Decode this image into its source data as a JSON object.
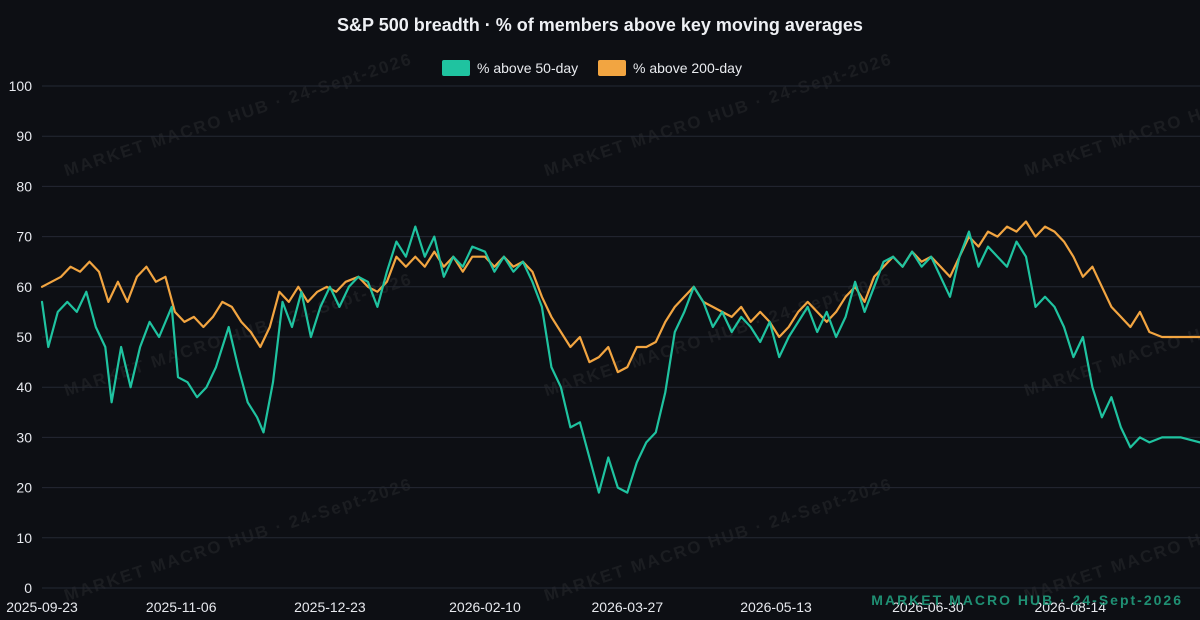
{
  "watermark": "MARKET MACRO HUB · 24-Sept-2026",
  "colors": {
    "background": "#0d0f14",
    "grid": "#242833",
    "series50": "#1fc3a0",
    "series200": "#f2a541"
  },
  "chart_data": {
    "type": "line",
    "title": "S&P 500 breadth · % of members above key moving averages",
    "xlabel": "",
    "ylabel": "",
    "ylim": [
      0,
      100
    ],
    "yticks": [
      0,
      10,
      20,
      30,
      40,
      50,
      60,
      70,
      80,
      90,
      100
    ],
    "xlim": [
      "2025-09-23",
      "2026-09-24"
    ],
    "xticks": [
      "2025-09-23",
      "2025-11-06",
      "2025-12-23",
      "2026-02-10",
      "2026-03-27",
      "2026-05-13",
      "2026-06-30",
      "2026-08-14"
    ],
    "grid": true,
    "legend_position": "top-center",
    "series": [
      {
        "name": "% above 50-day",
        "color": "#1fc3a0",
        "points": [
          [
            "2025-09-23",
            57
          ],
          [
            "2025-09-25",
            48
          ],
          [
            "2025-09-28",
            55
          ],
          [
            "2025-10-01",
            57
          ],
          [
            "2025-10-04",
            55
          ],
          [
            "2025-10-07",
            59
          ],
          [
            "2025-10-10",
            52
          ],
          [
            "2025-10-13",
            48
          ],
          [
            "2025-10-15",
            37
          ],
          [
            "2025-10-18",
            48
          ],
          [
            "2025-10-21",
            40
          ],
          [
            "2025-10-24",
            48
          ],
          [
            "2025-10-27",
            53
          ],
          [
            "2025-10-30",
            50
          ],
          [
            "2025-11-03",
            56
          ],
          [
            "2025-11-05",
            42
          ],
          [
            "2025-11-08",
            41
          ],
          [
            "2025-11-11",
            38
          ],
          [
            "2025-11-14",
            40
          ],
          [
            "2025-11-17",
            44
          ],
          [
            "2025-11-21",
            52
          ],
          [
            "2025-11-24",
            44
          ],
          [
            "2025-11-27",
            37
          ],
          [
            "2025-11-30",
            34
          ],
          [
            "2025-12-02",
            31
          ],
          [
            "2025-12-05",
            41
          ],
          [
            "2025-12-08",
            57
          ],
          [
            "2025-12-11",
            52
          ],
          [
            "2025-12-14",
            59
          ],
          [
            "2025-12-17",
            50
          ],
          [
            "2025-12-20",
            56
          ],
          [
            "2025-12-23",
            60
          ],
          [
            "2025-12-26",
            56
          ],
          [
            "2025-12-29",
            60
          ],
          [
            "2026-01-01",
            62
          ],
          [
            "2026-01-04",
            61
          ],
          [
            "2026-01-07",
            56
          ],
          [
            "2026-01-10",
            63
          ],
          [
            "2026-01-13",
            69
          ],
          [
            "2026-01-16",
            66
          ],
          [
            "2026-01-19",
            72
          ],
          [
            "2026-01-22",
            66
          ],
          [
            "2026-01-25",
            70
          ],
          [
            "2026-01-28",
            62
          ],
          [
            "2026-01-31",
            66
          ],
          [
            "2026-02-03",
            64
          ],
          [
            "2026-02-06",
            68
          ],
          [
            "2026-02-10",
            67
          ],
          [
            "2026-02-13",
            63
          ],
          [
            "2026-02-16",
            66
          ],
          [
            "2026-02-19",
            63
          ],
          [
            "2026-02-22",
            65
          ],
          [
            "2026-02-25",
            61
          ],
          [
            "2026-02-28",
            56
          ],
          [
            "2026-03-03",
            44
          ],
          [
            "2026-03-06",
            40
          ],
          [
            "2026-03-09",
            32
          ],
          [
            "2026-03-12",
            33
          ],
          [
            "2026-03-15",
            26
          ],
          [
            "2026-03-18",
            19
          ],
          [
            "2026-03-21",
            26
          ],
          [
            "2026-03-24",
            20
          ],
          [
            "2026-03-27",
            19
          ],
          [
            "2026-03-30",
            25
          ],
          [
            "2026-04-02",
            29
          ],
          [
            "2026-04-05",
            31
          ],
          [
            "2026-04-08",
            39
          ],
          [
            "2026-04-11",
            51
          ],
          [
            "2026-04-14",
            55
          ],
          [
            "2026-04-17",
            60
          ],
          [
            "2026-04-20",
            57
          ],
          [
            "2026-04-23",
            52
          ],
          [
            "2026-04-26",
            55
          ],
          [
            "2026-04-29",
            51
          ],
          [
            "2026-05-02",
            54
          ],
          [
            "2026-05-05",
            52
          ],
          [
            "2026-05-08",
            49
          ],
          [
            "2026-05-11",
            53
          ],
          [
            "2026-05-14",
            46
          ],
          [
            "2026-05-17",
            50
          ],
          [
            "2026-05-20",
            53
          ],
          [
            "2026-05-23",
            56
          ],
          [
            "2026-05-26",
            51
          ],
          [
            "2026-05-29",
            55
          ],
          [
            "2026-06-01",
            50
          ],
          [
            "2026-06-04",
            54
          ],
          [
            "2026-06-07",
            61
          ],
          [
            "2026-06-10",
            55
          ],
          [
            "2026-06-13",
            60
          ],
          [
            "2026-06-16",
            65
          ],
          [
            "2026-06-19",
            66
          ],
          [
            "2026-06-22",
            64
          ],
          [
            "2026-06-25",
            67
          ],
          [
            "2026-06-28",
            64
          ],
          [
            "2026-07-01",
            66
          ],
          [
            "2026-07-04",
            62
          ],
          [
            "2026-07-07",
            58
          ],
          [
            "2026-07-10",
            66
          ],
          [
            "2026-07-13",
            71
          ],
          [
            "2026-07-16",
            64
          ],
          [
            "2026-07-19",
            68
          ],
          [
            "2026-07-22",
            66
          ],
          [
            "2026-07-25",
            64
          ],
          [
            "2026-07-28",
            69
          ],
          [
            "2026-07-31",
            66
          ],
          [
            "2026-08-03",
            56
          ],
          [
            "2026-08-06",
            58
          ],
          [
            "2026-08-09",
            56
          ],
          [
            "2026-08-12",
            52
          ],
          [
            "2026-08-15",
            46
          ],
          [
            "2026-08-18",
            50
          ],
          [
            "2026-08-21",
            40
          ],
          [
            "2026-08-24",
            34
          ],
          [
            "2026-08-27",
            38
          ],
          [
            "2026-08-30",
            32
          ],
          [
            "2026-09-02",
            28
          ],
          [
            "2026-09-05",
            30
          ],
          [
            "2026-09-08",
            29
          ],
          [
            "2026-09-12",
            30
          ],
          [
            "2026-09-18",
            30
          ],
          [
            "2026-09-24",
            29
          ]
        ]
      },
      {
        "name": "% above 200-day",
        "color": "#f2a541",
        "points": [
          [
            "2025-09-23",
            60
          ],
          [
            "2025-09-26",
            61
          ],
          [
            "2025-09-29",
            62
          ],
          [
            "2025-10-02",
            64
          ],
          [
            "2025-10-05",
            63
          ],
          [
            "2025-10-08",
            65
          ],
          [
            "2025-10-11",
            63
          ],
          [
            "2025-10-14",
            57
          ],
          [
            "2025-10-17",
            61
          ],
          [
            "2025-10-20",
            57
          ],
          [
            "2025-10-23",
            62
          ],
          [
            "2025-10-26",
            64
          ],
          [
            "2025-10-29",
            61
          ],
          [
            "2025-11-01",
            62
          ],
          [
            "2025-11-04",
            55
          ],
          [
            "2025-11-07",
            53
          ],
          [
            "2025-11-10",
            54
          ],
          [
            "2025-11-13",
            52
          ],
          [
            "2025-11-16",
            54
          ],
          [
            "2025-11-19",
            57
          ],
          [
            "2025-11-22",
            56
          ],
          [
            "2025-11-25",
            53
          ],
          [
            "2025-11-28",
            51
          ],
          [
            "2025-12-01",
            48
          ],
          [
            "2025-12-04",
            52
          ],
          [
            "2025-12-07",
            59
          ],
          [
            "2025-12-10",
            57
          ],
          [
            "2025-12-13",
            60
          ],
          [
            "2025-12-16",
            57
          ],
          [
            "2025-12-19",
            59
          ],
          [
            "2025-12-22",
            60
          ],
          [
            "2025-12-25",
            59
          ],
          [
            "2025-12-28",
            61
          ],
          [
            "2026-01-01",
            62
          ],
          [
            "2026-01-04",
            60
          ],
          [
            "2026-01-07",
            59
          ],
          [
            "2026-01-10",
            61
          ],
          [
            "2026-01-13",
            66
          ],
          [
            "2026-01-16",
            64
          ],
          [
            "2026-01-19",
            66
          ],
          [
            "2026-01-22",
            64
          ],
          [
            "2026-01-25",
            67
          ],
          [
            "2026-01-28",
            64
          ],
          [
            "2026-01-31",
            66
          ],
          [
            "2026-02-03",
            63
          ],
          [
            "2026-02-06",
            66
          ],
          [
            "2026-02-10",
            66
          ],
          [
            "2026-02-13",
            64
          ],
          [
            "2026-02-16",
            66
          ],
          [
            "2026-02-19",
            64
          ],
          [
            "2026-02-22",
            65
          ],
          [
            "2026-02-25",
            63
          ],
          [
            "2026-02-28",
            58
          ],
          [
            "2026-03-03",
            54
          ],
          [
            "2026-03-06",
            51
          ],
          [
            "2026-03-09",
            48
          ],
          [
            "2026-03-12",
            50
          ],
          [
            "2026-03-15",
            45
          ],
          [
            "2026-03-18",
            46
          ],
          [
            "2026-03-21",
            48
          ],
          [
            "2026-03-24",
            43
          ],
          [
            "2026-03-27",
            44
          ],
          [
            "2026-03-30",
            48
          ],
          [
            "2026-04-02",
            48
          ],
          [
            "2026-04-05",
            49
          ],
          [
            "2026-04-08",
            53
          ],
          [
            "2026-04-11",
            56
          ],
          [
            "2026-04-14",
            58
          ],
          [
            "2026-04-17",
            60
          ],
          [
            "2026-04-20",
            57
          ],
          [
            "2026-04-23",
            56
          ],
          [
            "2026-04-26",
            55
          ],
          [
            "2026-04-29",
            54
          ],
          [
            "2026-05-02",
            56
          ],
          [
            "2026-05-05",
            53
          ],
          [
            "2026-05-08",
            55
          ],
          [
            "2026-05-11",
            53
          ],
          [
            "2026-05-14",
            50
          ],
          [
            "2026-05-17",
            52
          ],
          [
            "2026-05-20",
            55
          ],
          [
            "2026-05-23",
            57
          ],
          [
            "2026-05-26",
            55
          ],
          [
            "2026-05-29",
            53
          ],
          [
            "2026-06-01",
            55
          ],
          [
            "2026-06-04",
            58
          ],
          [
            "2026-06-07",
            60
          ],
          [
            "2026-06-10",
            57
          ],
          [
            "2026-06-13",
            62
          ],
          [
            "2026-06-16",
            64
          ],
          [
            "2026-06-19",
            66
          ],
          [
            "2026-06-22",
            64
          ],
          [
            "2026-06-25",
            67
          ],
          [
            "2026-06-28",
            65
          ],
          [
            "2026-07-01",
            66
          ],
          [
            "2026-07-04",
            64
          ],
          [
            "2026-07-07",
            62
          ],
          [
            "2026-07-10",
            66
          ],
          [
            "2026-07-13",
            70
          ],
          [
            "2026-07-16",
            68
          ],
          [
            "2026-07-19",
            71
          ],
          [
            "2026-07-22",
            70
          ],
          [
            "2026-07-25",
            72
          ],
          [
            "2026-07-28",
            71
          ],
          [
            "2026-07-31",
            73
          ],
          [
            "2026-08-03",
            70
          ],
          [
            "2026-08-06",
            72
          ],
          [
            "2026-08-09",
            71
          ],
          [
            "2026-08-12",
            69
          ],
          [
            "2026-08-15",
            66
          ],
          [
            "2026-08-18",
            62
          ],
          [
            "2026-08-21",
            64
          ],
          [
            "2026-08-24",
            60
          ],
          [
            "2026-08-27",
            56
          ],
          [
            "2026-08-30",
            54
          ],
          [
            "2026-09-02",
            52
          ],
          [
            "2026-09-05",
            55
          ],
          [
            "2026-09-08",
            51
          ],
          [
            "2026-09-12",
            50
          ],
          [
            "2026-09-18",
            50
          ],
          [
            "2026-09-24",
            50
          ]
        ]
      }
    ]
  }
}
